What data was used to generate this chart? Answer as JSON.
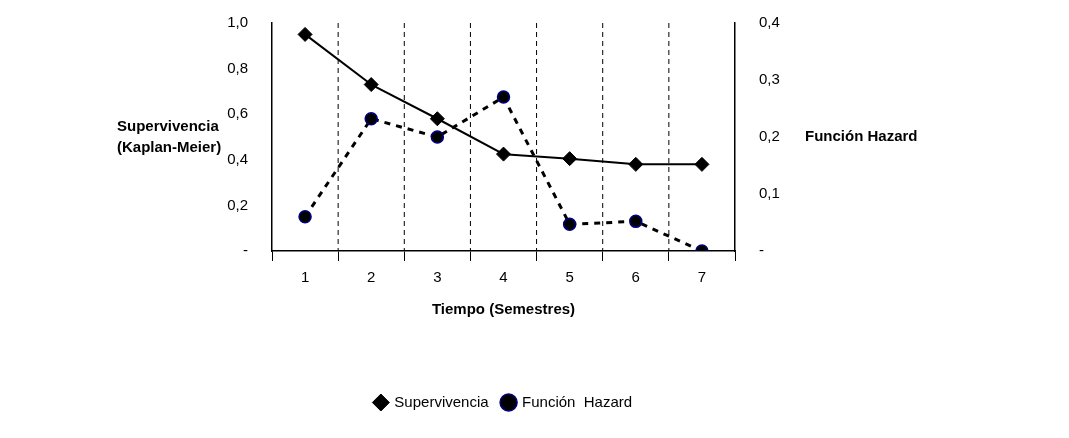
{
  "chart_data": {
    "type": "line",
    "xlabel": "Tiempo (Semestres)",
    "ylabel": "Supervivencia\n(Kaplan-Meier)",
    "y2label": "Función Hazard",
    "categories": [
      "1",
      "2",
      "3",
      "4",
      "5",
      "6",
      "7"
    ],
    "series": [
      {
        "name": "Supervivencia",
        "color": "#000000",
        "marker": "diamond",
        "line_style": "solid",
        "values": [
          0.95,
          0.73,
          0.58,
          0.425,
          0.405,
          0.38,
          0.38
        ]
      },
      {
        "name": "Función  Hazard",
        "color": "#000000",
        "marker": "circle",
        "line_style": "dashed",
        "axis": "y2",
        "values": [
          0.06,
          0.232,
          0.2,
          0.27,
          0.047,
          0.052,
          0
        ]
      }
    ],
    "ylim": [
      0,
      1
    ],
    "yticks": [
      {
        "value": 0,
        "label": "-"
      },
      {
        "value": 0.2,
        "label": "0,2"
      },
      {
        "value": 0.4,
        "label": "0,4"
      },
      {
        "value": 0.6,
        "label": "0,6"
      },
      {
        "value": 0.8,
        "label": "0,8"
      },
      {
        "value": 1,
        "label": "1,0"
      }
    ],
    "y2lim": [
      0,
      0.4
    ],
    "y2ticks": [
      {
        "value": 0,
        "label": "-"
      },
      {
        "value": 0.1,
        "label": "0,1"
      },
      {
        "value": 0.2,
        "label": "0,2"
      },
      {
        "value": 0.3,
        "label": "0,3"
      },
      {
        "value": 0.4,
        "label": "0,4"
      }
    ],
    "grid": "x",
    "legend": "bottom"
  }
}
